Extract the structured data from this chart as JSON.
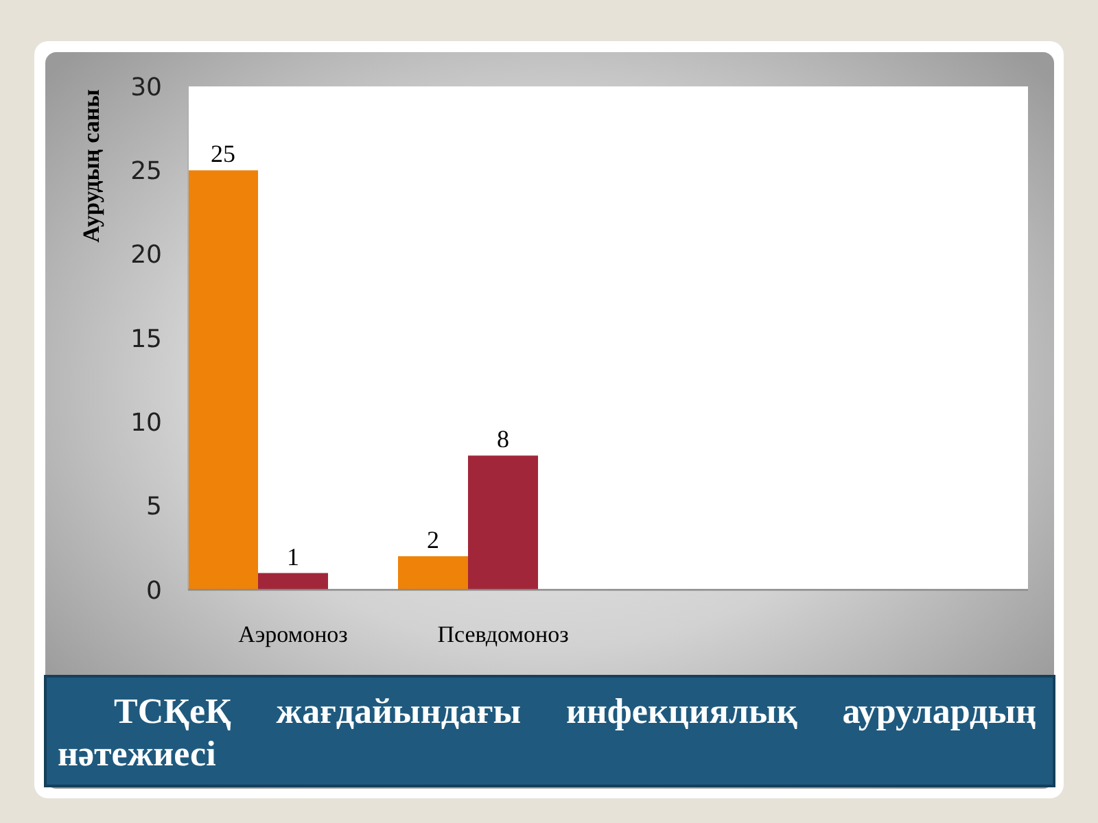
{
  "chart_data": {
    "type": "bar",
    "title": "ТСҚеҚ жағдайындағы инфекциялық аурулардың нәтежиесі",
    "ylabel": "Аурудың саны",
    "categories": [
      "Аэромоноз",
      "Псевдомоноз",
      null,
      null
    ],
    "series": [
      {
        "color": "#ef8209",
        "values": [
          25,
          2,
          null,
          null
        ]
      },
      {
        "color": "#a2263a",
        "values": [
          1,
          8,
          null,
          null
        ]
      }
    ],
    "ylim": [
      0,
      30
    ],
    "yticks": [
      0,
      5,
      10,
      15,
      20,
      25,
      30
    ],
    "data_labels": true
  }
}
